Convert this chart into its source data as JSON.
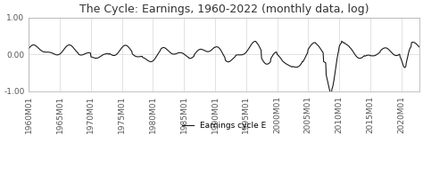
{
  "title": "The Cycle: Earnings, 1960-2022 (monthly data, log)",
  "ylim": [
    -1.0,
    1.0
  ],
  "yticks": [
    -1.0,
    0.0,
    1.0
  ],
  "ytick_labels": [
    "-1.00",
    "0.00",
    "1.00"
  ],
  "legend_label": "Earnings cycle E",
  "line_color": "#1a1a1a",
  "background_color": "#ffffff",
  "grid_color": "#cccccc",
  "title_fontsize": 9,
  "tick_fontsize": 6.5
}
